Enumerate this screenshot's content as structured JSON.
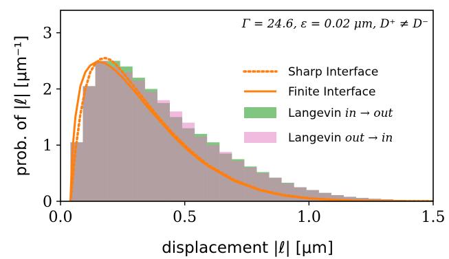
{
  "chart_data": {
    "type": "histogram+line",
    "annotation": "Γ = 24.6,  ε = 0.02 μm,  D⁺ ≠ D⁻",
    "xlabel": "displacement |ℓ| [μm]",
    "ylabel": "prob. of |ℓ| [μm⁻¹]",
    "xlim": [
      0.0,
      1.5
    ],
    "ylim": [
      0,
      3.4
    ],
    "xticks": [
      "0.0",
      "0.5",
      "1.0",
      "1.5"
    ],
    "yticks": [
      "0",
      "1",
      "2",
      "3"
    ],
    "legend_position": "right",
    "bin_width": 0.05,
    "bin_edges_start": 0.04,
    "series": [
      {
        "name": "Sharp Interface",
        "kind": "dotted-line",
        "color": "#ff7f0e",
        "x": [
          0.04,
          0.05,
          0.06,
          0.08,
          0.1,
          0.12,
          0.14,
          0.16,
          0.18,
          0.2,
          0.22,
          0.25,
          0.3,
          0.35,
          0.4,
          0.45,
          0.5,
          0.55,
          0.6,
          0.7,
          0.8,
          0.9,
          1.0,
          1.1,
          1.2,
          1.3,
          1.4,
          1.5
        ],
        "y": [
          0.0,
          0.45,
          0.9,
          1.55,
          2.0,
          2.3,
          2.45,
          2.53,
          2.55,
          2.52,
          2.45,
          2.3,
          2.02,
          1.74,
          1.47,
          1.22,
          1.0,
          0.8,
          0.63,
          0.38,
          0.21,
          0.11,
          0.055,
          0.026,
          0.012,
          0.005,
          0.002,
          0.001
        ]
      },
      {
        "name": "Finite Interface",
        "kind": "line",
        "color": "#ff7f0e",
        "x": [
          0.04,
          0.045,
          0.05,
          0.06,
          0.08,
          0.1,
          0.12,
          0.14,
          0.16,
          0.18,
          0.2,
          0.22,
          0.25,
          0.3,
          0.35,
          0.4,
          0.45,
          0.5,
          0.55,
          0.6,
          0.7,
          0.8,
          0.9,
          1.0,
          1.1,
          1.2,
          1.3,
          1.4,
          1.5
        ],
        "y": [
          0.0,
          0.6,
          1.0,
          1.5,
          2.05,
          2.3,
          2.42,
          2.47,
          2.48,
          2.46,
          2.4,
          2.33,
          2.2,
          1.95,
          1.68,
          1.43,
          1.18,
          0.96,
          0.77,
          0.61,
          0.36,
          0.2,
          0.1,
          0.05,
          0.024,
          0.011,
          0.005,
          0.002,
          0.001
        ]
      },
      {
        "name": "Langevin in → out",
        "kind": "histogram",
        "color": "#2ca02c",
        "alpha": 0.6,
        "values": [
          1.05,
          2.05,
          2.5,
          2.5,
          2.4,
          2.2,
          2.0,
          1.75,
          1.5,
          1.3,
          1.2,
          1.05,
          0.85,
          0.75,
          0.62,
          0.52,
          0.42,
          0.33,
          0.25,
          0.2,
          0.15,
          0.11,
          0.08,
          0.06,
          0.045,
          0.035,
          0.025,
          0.02,
          0.015
        ]
      },
      {
        "name": "Langevin out → in",
        "kind": "histogram",
        "color": "#e377c2",
        "alpha": 0.5,
        "values": [
          1.05,
          2.05,
          2.5,
          2.4,
          2.3,
          2.15,
          1.95,
          1.8,
          1.6,
          1.4,
          1.15,
          1.0,
          0.88,
          0.72,
          0.6,
          0.5,
          0.42,
          0.32,
          0.25,
          0.2,
          0.15,
          0.11,
          0.08,
          0.06,
          0.045,
          0.035,
          0.025,
          0.02,
          0.015
        ]
      }
    ]
  },
  "legend": {
    "sharp_label": "Sharp Interface",
    "finite_label": "Finite Interface",
    "in_out_prefix": "Langevin",
    "in_out_suffix": "in → out",
    "out_in_prefix": "Langevin",
    "out_in_suffix": "out → in"
  }
}
